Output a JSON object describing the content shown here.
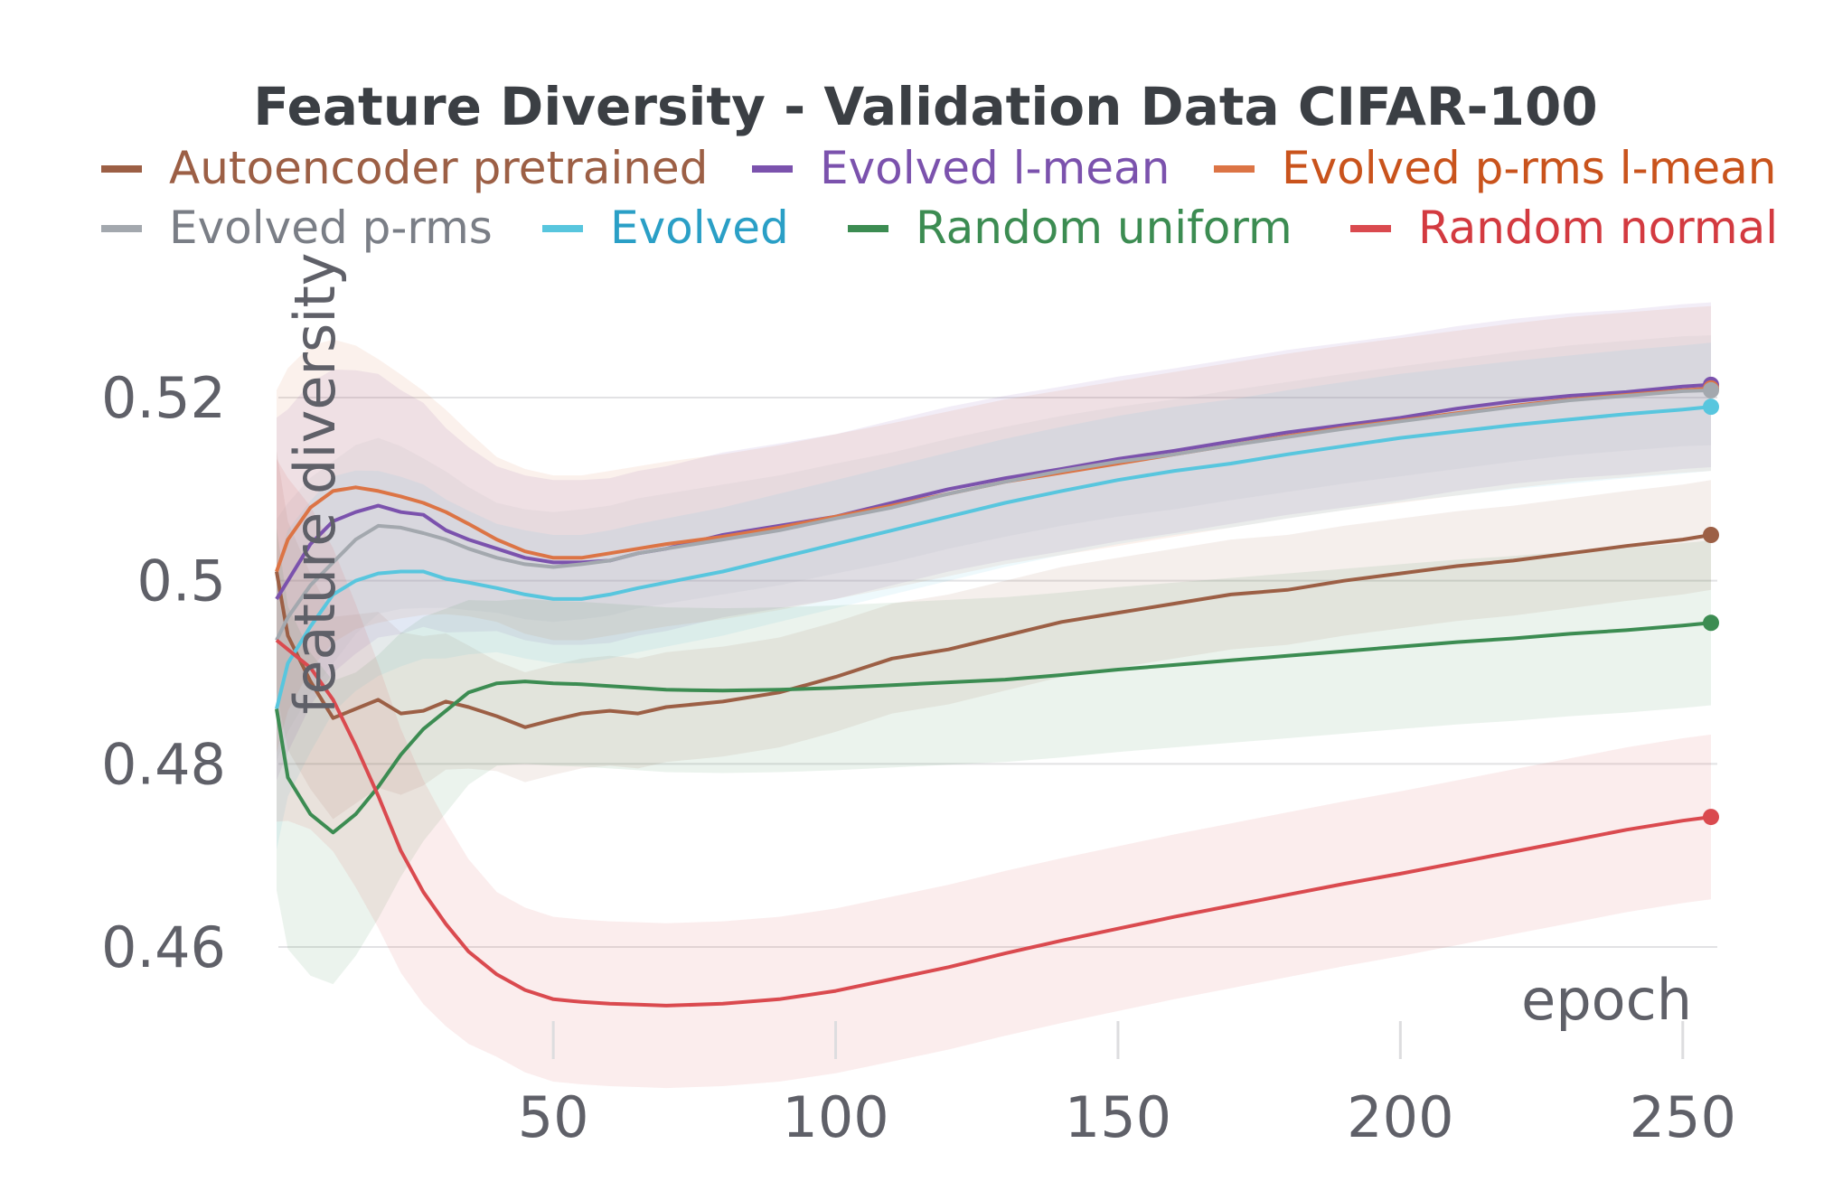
{
  "chart_data": {
    "type": "line",
    "title": "Feature Diversity - Validation Data CIFAR-100",
    "xlabel": "epoch",
    "ylabel": "feature diversity",
    "xlim": [
      1,
      255
    ],
    "ylim": [
      0.453,
      0.532
    ],
    "x_ticks": [
      50,
      100,
      150,
      200,
      250
    ],
    "y_ticks": [
      0.46,
      0.48,
      0.5,
      0.52
    ],
    "y_tick_labels": [
      "0.46",
      "0.48",
      "0.5",
      "0.52"
    ],
    "x_tick_labels": [
      "50",
      "100",
      "150",
      "200",
      "250"
    ],
    "grid": true,
    "legend_position": "top",
    "x": [
      1,
      3,
      7,
      11,
      15,
      19,
      23,
      27,
      31,
      35,
      40,
      45,
      50,
      55,
      60,
      65,
      70,
      80,
      90,
      100,
      110,
      120,
      130,
      140,
      150,
      160,
      170,
      180,
      190,
      200,
      210,
      220,
      230,
      240,
      250,
      255
    ],
    "series": [
      {
        "name": "Autoencoder pretrained",
        "color": "#9c5f45",
        "band": 0.006,
        "values": [
          0.501,
          0.494,
          0.489,
          0.485,
          0.486,
          0.487,
          0.4855,
          0.4858,
          0.4868,
          0.4862,
          0.4852,
          0.484,
          0.4848,
          0.4855,
          0.4858,
          0.4855,
          0.4862,
          0.4868,
          0.4878,
          0.4895,
          0.4915,
          0.4925,
          0.494,
          0.4955,
          0.4965,
          0.4975,
          0.4985,
          0.499,
          0.5,
          0.5008,
          0.5016,
          0.5022,
          0.503,
          0.5038,
          0.5045,
          0.505
        ]
      },
      {
        "name": "Evolved l-mean",
        "color": "#7b52ad",
        "band": 0.009,
        "values": [
          0.498,
          0.5,
          0.504,
          0.5065,
          0.5075,
          0.5082,
          0.5075,
          0.5072,
          0.5055,
          0.5045,
          0.5035,
          0.5025,
          0.502,
          0.502,
          0.5022,
          0.503,
          0.5035,
          0.505,
          0.506,
          0.507,
          0.5085,
          0.51,
          0.5112,
          0.5122,
          0.5133,
          0.5142,
          0.5152,
          0.5162,
          0.517,
          0.5178,
          0.5188,
          0.5196,
          0.5202,
          0.5206,
          0.5212,
          0.5214
        ]
      },
      {
        "name": "Evolved p-rms l-mean",
        "color": "#dc7445",
        "band": 0.009,
        "values": [
          0.501,
          0.5045,
          0.508,
          0.5098,
          0.5102,
          0.5098,
          0.5092,
          0.5085,
          0.5075,
          0.5062,
          0.5045,
          0.5032,
          0.5025,
          0.5025,
          0.503,
          0.5035,
          0.504,
          0.5048,
          0.5058,
          0.507,
          0.5082,
          0.5095,
          0.5108,
          0.5118,
          0.5128,
          0.5138,
          0.5148,
          0.5158,
          0.5167,
          0.5175,
          0.5183,
          0.5191,
          0.5198,
          0.5203,
          0.5208,
          0.521
        ]
      },
      {
        "name": "Evolved p-rms",
        "color": "#a3a8ae",
        "band": 0.006,
        "values": [
          0.4935,
          0.496,
          0.4995,
          0.502,
          0.5045,
          0.506,
          0.5058,
          0.5052,
          0.5045,
          0.5035,
          0.5025,
          0.5018,
          0.5015,
          0.5018,
          0.5022,
          0.503,
          0.5035,
          0.5045,
          0.5055,
          0.5068,
          0.508,
          0.5095,
          0.5108,
          0.512,
          0.513,
          0.5138,
          0.5148,
          0.5157,
          0.5166,
          0.5174,
          0.5182,
          0.519,
          0.5197,
          0.5202,
          0.5207,
          0.5208
        ]
      },
      {
        "name": "Evolved",
        "color": "#58c6de",
        "band": 0.007,
        "values": [
          0.486,
          0.491,
          0.495,
          0.4985,
          0.5,
          0.5008,
          0.501,
          0.501,
          0.5002,
          0.4998,
          0.4992,
          0.4985,
          0.498,
          0.498,
          0.4985,
          0.4992,
          0.4998,
          0.501,
          0.5025,
          0.504,
          0.5055,
          0.507,
          0.5085,
          0.5098,
          0.511,
          0.512,
          0.5128,
          0.5138,
          0.5147,
          0.5156,
          0.5163,
          0.517,
          0.5176,
          0.5182,
          0.5187,
          0.519
        ]
      },
      {
        "name": "Random uniform",
        "color": "#3c8c52",
        "band": 0.009,
        "values": [
          0.486,
          0.4785,
          0.4745,
          0.4725,
          0.4745,
          0.4775,
          0.481,
          0.4838,
          0.4858,
          0.4878,
          0.4888,
          0.489,
          0.4888,
          0.4887,
          0.4885,
          0.4883,
          0.4881,
          0.488,
          0.4881,
          0.4883,
          0.4886,
          0.4889,
          0.4892,
          0.4897,
          0.4903,
          0.4908,
          0.4913,
          0.4918,
          0.4923,
          0.4928,
          0.4933,
          0.4937,
          0.4942,
          0.4946,
          0.4951,
          0.4954
        ]
      },
      {
        "name": "Random normal",
        "color": "#da4a4f",
        "band": 0.009,
        "values": [
          0.4935,
          0.4925,
          0.4905,
          0.487,
          0.482,
          0.4765,
          0.4705,
          0.466,
          0.4625,
          0.4595,
          0.457,
          0.4553,
          0.4543,
          0.454,
          0.4538,
          0.4537,
          0.4536,
          0.4538,
          0.4543,
          0.4552,
          0.4565,
          0.4578,
          0.4593,
          0.4607,
          0.462,
          0.4633,
          0.4645,
          0.4657,
          0.4669,
          0.468,
          0.4692,
          0.4704,
          0.4716,
          0.4728,
          0.4738,
          0.4742
        ]
      }
    ]
  },
  "legend": [
    {
      "label": "Autoencoder pretrained",
      "color": "#9c5f45",
      "text_color": "#9c5f45"
    },
    {
      "label": "Evolved l-mean",
      "color": "#7b52ad",
      "text_color": "#7b52ad"
    },
    {
      "label": "Evolved p-rms l-mean",
      "color": "#dc7445",
      "text_color": "#c9531c"
    },
    {
      "label": "Evolved p-rms",
      "color": "#a3a8ae",
      "text_color": "#7a7e86"
    },
    {
      "label": "Evolved",
      "color": "#58c6de",
      "text_color": "#2a9fc6"
    },
    {
      "label": "Random uniform",
      "color": "#3c8c52",
      "text_color": "#3c8c52"
    },
    {
      "label": "Random normal",
      "color": "#da4a4f",
      "text_color": "#d33a40"
    }
  ]
}
